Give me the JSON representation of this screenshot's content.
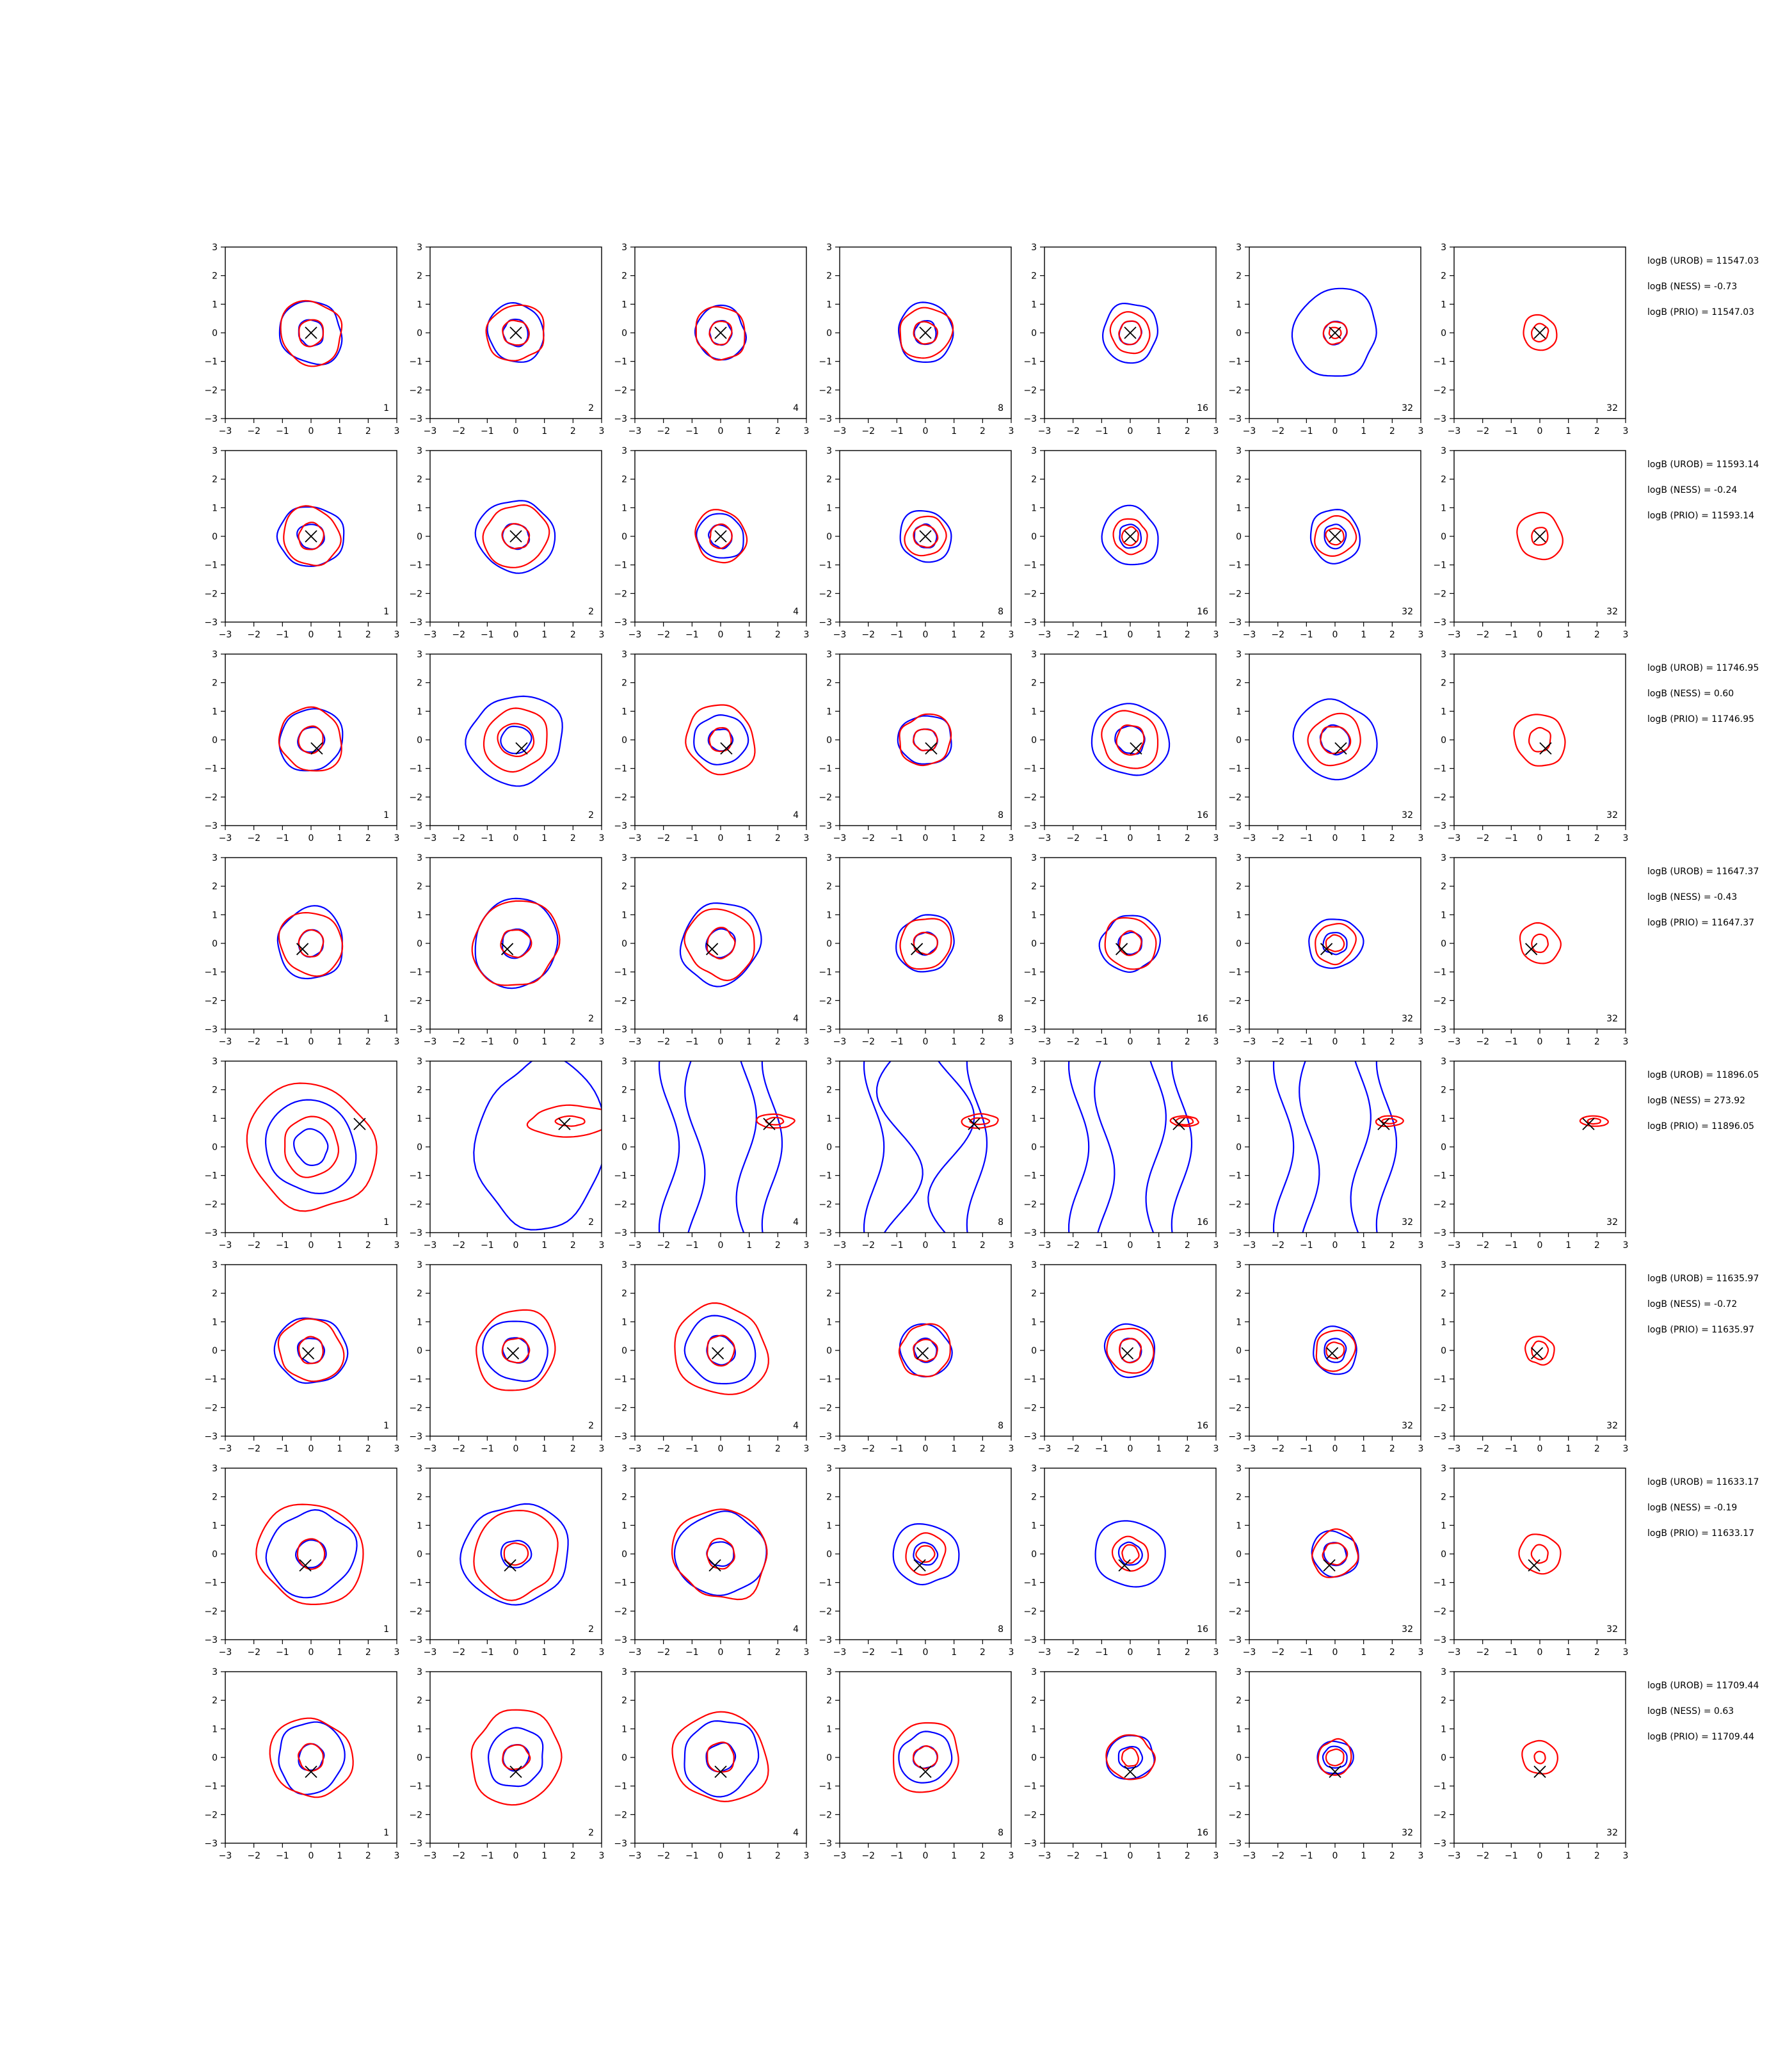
{
  "colors": {
    "model_a": "#0000ff",
    "model_b": "#ff0000",
    "marker": "#000000",
    "axes": "#000000"
  },
  "column_labels": [
    "1",
    "2",
    "4",
    "8",
    "16",
    "32",
    "32"
  ],
  "axis": {
    "xlim": [
      -3,
      3
    ],
    "ylim": [
      -3,
      3
    ],
    "ticks": [
      -3,
      -2,
      -1,
      0,
      1,
      2,
      3
    ],
    "grid": false
  },
  "rows": [
    {
      "stats": [
        "logB (UROB) = 11547.03",
        "logB (NESS) = -0.73",
        "logB (PRIO) = 11547.03"
      ],
      "marker": [
        0.0,
        0.0
      ]
    },
    {
      "stats": [
        "logB (UROB) = 11593.14",
        "logB (NESS) = -0.24",
        "logB (PRIO) = 11593.14"
      ],
      "marker": [
        0.0,
        0.0
      ]
    },
    {
      "stats": [
        "logB (UROB) = 11746.95",
        "logB (NESS) = 0.60",
        "logB (PRIO) = 11746.95"
      ],
      "marker": [
        0.2,
        -0.3
      ]
    },
    {
      "stats": [
        "logB (UROB) = 11647.37",
        "logB (NESS) = -0.43",
        "logB (PRIO) = 11647.37"
      ],
      "marker": [
        -0.3,
        -0.2
      ]
    },
    {
      "stats": [
        "logB (UROB) = 11896.05",
        "logB (NESS) = 273.92",
        "logB (PRIO) = 11896.05"
      ],
      "marker": [
        1.7,
        0.8
      ]
    },
    {
      "stats": [
        "logB (UROB) = 11635.97",
        "logB (NESS) = -0.72",
        "logB (PRIO) = 11635.97"
      ],
      "marker": [
        -0.1,
        -0.1
      ]
    },
    {
      "stats": [
        "logB (UROB) = 11633.17",
        "logB (NESS) = -0.19",
        "logB (PRIO) = 11633.17"
      ],
      "marker": [
        -0.2,
        -0.4
      ]
    },
    {
      "stats": [
        "logB (UROB) = 11709.44",
        "logB (NESS) = 0.63",
        "logB (PRIO) = 11709.44"
      ],
      "marker": [
        0.0,
        -0.5
      ]
    }
  ],
  "chart_data": {
    "type": "contour",
    "grid_shape": [
      8,
      7
    ],
    "xlim": [
      -3,
      3
    ],
    "ylim": [
      -3,
      3
    ],
    "xticks": [
      -3,
      -2,
      -1,
      0,
      1,
      2,
      3
    ],
    "yticks": [
      -3,
      -2,
      -1,
      0,
      1,
      2,
      3
    ],
    "panel_labels": [
      "1",
      "2",
      "4",
      "8",
      "16",
      "32",
      "32"
    ],
    "series": [
      {
        "color": "#0000ff"
      },
      {
        "color": "#ff0000"
      }
    ],
    "row_markers": [
      [
        0,
        0
      ],
      [
        0,
        0
      ],
      [
        0.2,
        -0.3
      ],
      [
        -0.3,
        -0.2
      ],
      [
        1.7,
        0.8
      ],
      [
        -0.1,
        -0.1
      ],
      [
        -0.2,
        -0.4
      ],
      [
        0,
        -0.5
      ]
    ],
    "blue_level_radii": [
      [
        [
          0.45,
          1.1
        ],
        [
          0.45,
          1.0
        ],
        [
          0.4,
          0.9
        ],
        [
          0.4,
          1.0
        ],
        [
          0.4,
          1.0
        ],
        [
          0.4,
          1.5
        ],
        []
      ],
      [
        [
          0.45,
          1.1
        ],
        [
          0.45,
          1.3
        ],
        [
          0.4,
          0.8
        ],
        [
          0.4,
          0.9
        ],
        [
          0.4,
          1.0
        ],
        [
          0.4,
          0.9
        ],
        []
      ],
      [
        [
          0.45,
          1.1
        ],
        [
          0.5,
          1.6
        ],
        [
          0.4,
          0.9
        ],
        [
          0.4,
          0.9
        ],
        [
          0.5,
          1.3
        ],
        [
          0.5,
          1.4
        ],
        []
      ],
      [
        [
          0.45,
          1.2
        ],
        [
          0.5,
          1.5
        ],
        [
          0.5,
          1.4
        ],
        [
          0.4,
          1.0
        ],
        [
          0.4,
          1.0
        ],
        [
          0.4,
          0.9
        ],
        []
      ],
      [
        [
          0.6,
          1.6
        ],
        [],
        [],
        [],
        [],
        [],
        []
      ],
      [
        [
          0.45,
          1.2
        ],
        [
          0.45,
          1.1
        ],
        [
          0.5,
          1.2
        ],
        [
          0.4,
          0.9
        ],
        [
          0.4,
          0.9
        ],
        [
          0.4,
          0.8
        ],
        []
      ],
      [
        [
          0.5,
          1.5
        ],
        [
          0.5,
          1.8
        ],
        [
          0.45,
          1.5
        ],
        [
          0.4,
          1.1
        ],
        [
          0.4,
          1.2
        ],
        [
          0.4,
          0.8
        ],
        []
      ],
      [
        [
          0.45,
          1.2
        ],
        [
          0.45,
          1.0
        ],
        [
          0.5,
          1.3
        ],
        [
          0.4,
          0.9
        ],
        [
          0.4,
          0.8
        ],
        [
          0.4,
          0.6
        ],
        []
      ]
    ],
    "red_level_radii": [
      [
        [
          0.45,
          1.1
        ],
        [
          0.45,
          1.0
        ],
        [
          0.4,
          0.9
        ],
        [
          0.4,
          0.9
        ],
        [
          0.4,
          0.7
        ],
        [
          0.2,
          0.4
        ],
        [
          0.3,
          0.6
        ]
      ],
      [
        [
          0.45,
          1.0
        ],
        [
          0.45,
          1.1
        ],
        [
          0.4,
          0.9
        ],
        [
          0.4,
          0.7
        ],
        [
          0.3,
          0.6
        ],
        [
          0.3,
          0.7
        ],
        [
          0.3,
          0.8
        ]
      ],
      [
        [
          0.45,
          1.1
        ],
        [
          0.6,
          1.1
        ],
        [
          0.4,
          1.2
        ],
        [
          0.4,
          0.9
        ],
        [
          0.5,
          1.0
        ],
        [
          0.5,
          0.9
        ],
        [
          0.4,
          0.9
        ]
      ],
      [
        [
          0.45,
          1.1
        ],
        [
          0.5,
          1.5
        ],
        [
          0.5,
          1.2
        ],
        [
          0.4,
          0.9
        ],
        [
          0.4,
          0.9
        ],
        [
          0.3,
          0.7
        ],
        [
          0.3,
          0.7
        ]
      ],
      [
        [
          1.0,
          2.2
        ],
        [
          0.3,
          0.9
        ],
        [
          0.2,
          0.4
        ],
        [
          0.2,
          0.4
        ],
        [
          0.2,
          0.3
        ],
        [
          0.15,
          0.3
        ],
        [
          0.15,
          0.3
        ]
      ],
      [
        [
          0.45,
          1.1
        ],
        [
          0.45,
          1.4
        ],
        [
          0.5,
          1.6
        ],
        [
          0.4,
          0.9
        ],
        [
          0.4,
          0.8
        ],
        [
          0.3,
          0.7
        ],
        [
          0.3,
          0.5
        ]
      ],
      [
        [
          0.5,
          1.8
        ],
        [
          0.4,
          1.5
        ],
        [
          0.5,
          1.6
        ],
        [
          0.3,
          0.7
        ],
        [
          0.3,
          0.6
        ],
        [
          0.4,
          0.8
        ],
        [
          0.3,
          0.7
        ]
      ],
      [
        [
          0.45,
          1.4
        ],
        [
          0.45,
          1.6
        ],
        [
          0.5,
          1.6
        ],
        [
          0.4,
          1.2
        ],
        [
          0.3,
          0.8
        ],
        [
          0.3,
          0.6
        ],
        [
          0.2,
          0.6
        ]
      ]
    ],
    "row5_blue_curves": "vertical wavy band contours crossing full panel height in columns 2-6"
  }
}
